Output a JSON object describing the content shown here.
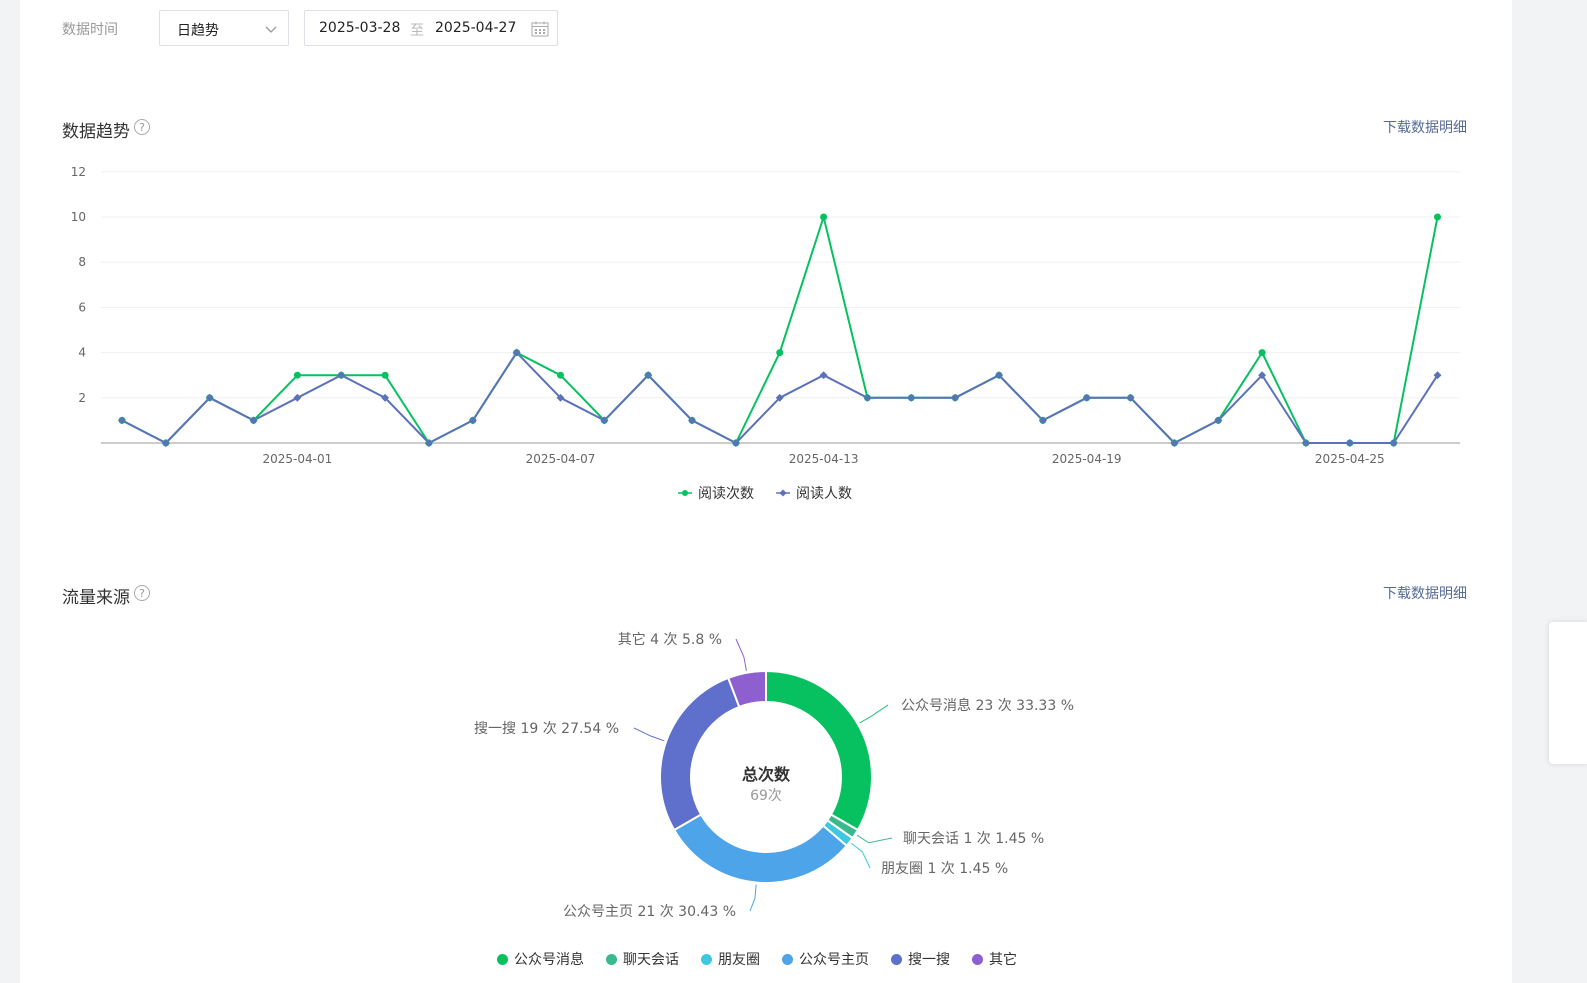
{
  "filters": {
    "time_label": "数据时间",
    "granularity": "日趋势",
    "start_date": "2025-03-28",
    "range_sep": "至",
    "end_date": "2025-04-27"
  },
  "trend": {
    "title": "数据趋势",
    "download_label": "下载数据明细"
  },
  "source": {
    "title": "流量来源",
    "download_label": "下载数据明细",
    "center_title": "总次数",
    "center_value": "69次"
  },
  "colors": {
    "green": "#07c160",
    "blue_line": "#5b72b9",
    "pie": [
      "#07c160",
      "#3cb98c",
      "#3ec7e0",
      "#4ea4e8",
      "#5e6fcc",
      "#8e5fcf"
    ]
  },
  "chart_data": [
    {
      "type": "line",
      "title": "",
      "x": [
        "2025-03-28",
        "2025-03-29",
        "2025-03-30",
        "2025-03-31",
        "2025-04-01",
        "2025-04-02",
        "2025-04-03",
        "2025-04-04",
        "2025-04-05",
        "2025-04-06",
        "2025-04-07",
        "2025-04-08",
        "2025-04-09",
        "2025-04-10",
        "2025-04-11",
        "2025-04-12",
        "2025-04-13",
        "2025-04-14",
        "2025-04-15",
        "2025-04-16",
        "2025-04-17",
        "2025-04-18",
        "2025-04-19",
        "2025-04-20",
        "2025-04-21",
        "2025-04-22",
        "2025-04-23",
        "2025-04-24",
        "2025-04-25",
        "2025-04-26",
        "2025-04-27"
      ],
      "x_tick_labels": [
        "2025-04-01",
        "2025-04-07",
        "2025-04-13",
        "2025-04-19",
        "2025-04-25"
      ],
      "y_ticks": [
        2,
        4,
        6,
        8,
        10,
        12
      ],
      "ylim": [
        0,
        12
      ],
      "grid": true,
      "legend": "bottom-center",
      "series": [
        {
          "name": "阅读次数",
          "color": "#07c160",
          "values": [
            1,
            0,
            2,
            1,
            3,
            3,
            3,
            0,
            1,
            4,
            3,
            1,
            3,
            1,
            0,
            4,
            10,
            2,
            2,
            2,
            3,
            1,
            2,
            2,
            0,
            1,
            4,
            0,
            0,
            0,
            10
          ]
        },
        {
          "name": "阅读人数",
          "color": "#5b72b9",
          "values": [
            1,
            0,
            2,
            1,
            2,
            3,
            2,
            0,
            1,
            4,
            2,
            1,
            3,
            1,
            0,
            2,
            3,
            2,
            2,
            2,
            3,
            1,
            2,
            2,
            0,
            1,
            3,
            0,
            0,
            0,
            3
          ]
        }
      ]
    },
    {
      "type": "pie",
      "title": "",
      "legend": "bottom-center",
      "slices": [
        {
          "name": "公众号消息",
          "count": 23,
          "percent": 33.33,
          "label": "公众号消息 23 次 33.33 %"
        },
        {
          "name": "聊天会话",
          "count": 1,
          "percent": 1.45,
          "label": "聊天会话 1 次 1.45 %"
        },
        {
          "name": "朋友圈",
          "count": 1,
          "percent": 1.45,
          "label": "朋友圈 1 次 1.45 %"
        },
        {
          "name": "公众号主页",
          "count": 21,
          "percent": 30.43,
          "label": "公众号主页 21 次 30.43 %"
        },
        {
          "name": "搜一搜",
          "count": 19,
          "percent": 27.54,
          "label": "搜一搜 19 次 27.54 %"
        },
        {
          "name": "其它",
          "count": 4,
          "percent": 5.8,
          "label": "其它 4 次 5.8 %"
        }
      ],
      "total": 69
    }
  ]
}
